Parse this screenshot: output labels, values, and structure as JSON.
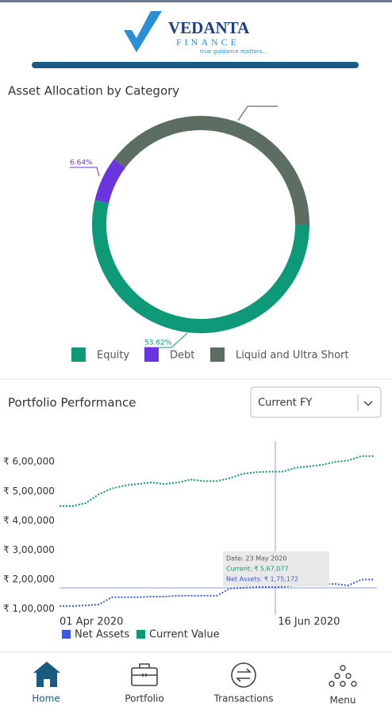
{
  "header": {
    "brand": "VEDANTA",
    "sub_brand": "FINANCE",
    "tagline": "true guidance matters..."
  },
  "chart_data": [
    {
      "type": "donut",
      "title": "Asset Allocation by Category",
      "categories": [
        "Equity",
        "Debt",
        "Liquid and Ultra Short"
      ],
      "values": [
        53.62,
        6.64,
        39.74
      ],
      "value_labels": [
        "53.62%",
        "6.64%",
        null
      ],
      "colors": [
        "#0e9a78",
        "#6a35e0",
        "#5c6e62"
      ]
    },
    {
      "type": "line",
      "title": "Portfolio Performance",
      "period_selector": "Current FY",
      "x": [
        0,
        4,
        8,
        12,
        16,
        20,
        24,
        28,
        32,
        36,
        40,
        44,
        48,
        52,
        56,
        60,
        64,
        68,
        72,
        76,
        80,
        84,
        88,
        92,
        96
      ],
      "series": [
        {
          "name": "Net Assets",
          "color": "#3d5bd9",
          "values": [
            110000,
            110000,
            112000,
            115000,
            140000,
            140000,
            140000,
            142000,
            142000,
            145000,
            145000,
            145000,
            145000,
            170000,
            172000,
            174000,
            175000,
            175000,
            180000,
            182000,
            185000,
            185000,
            180000,
            200000,
            200000
          ]
        },
        {
          "name": "Current Value",
          "color": "#0e9a78",
          "values": [
            450000,
            450000,
            460000,
            490000,
            510000,
            520000,
            525000,
            530000,
            525000,
            530000,
            540000,
            535000,
            535000,
            545000,
            560000,
            565000,
            567000,
            567000,
            580000,
            585000,
            590000,
            600000,
            605000,
            620000,
            620000
          ]
        }
      ],
      "xlim": [
        0,
        96
      ],
      "xticks": [
        {
          "value": 0,
          "label": "01 Apr 2020"
        },
        {
          "value": 76,
          "label": "16 Jun 2020"
        }
      ],
      "ylim": [
        80000,
        660000
      ],
      "yticks": [
        {
          "value": 100000,
          "label": "₹ 1,00,000"
        },
        {
          "value": 200000,
          "label": "₹ 2,00,000"
        },
        {
          "value": 300000,
          "label": "₹ 3,00,000"
        },
        {
          "value": 400000,
          "label": "₹ 4,00,000"
        },
        {
          "value": 500000,
          "label": "₹ 5,00,000"
        },
        {
          "value": 600000,
          "label": "₹ 6,00,000"
        }
      ],
      "tooltip": {
        "date": "Date: 23 May 2020",
        "current": "Current: ₹ 5,67,077",
        "net_assets": "Net Assets: ₹ 1,75,172"
      }
    }
  ],
  "nav": [
    "Home",
    "Portfolio",
    "Transactions",
    "Menu"
  ]
}
